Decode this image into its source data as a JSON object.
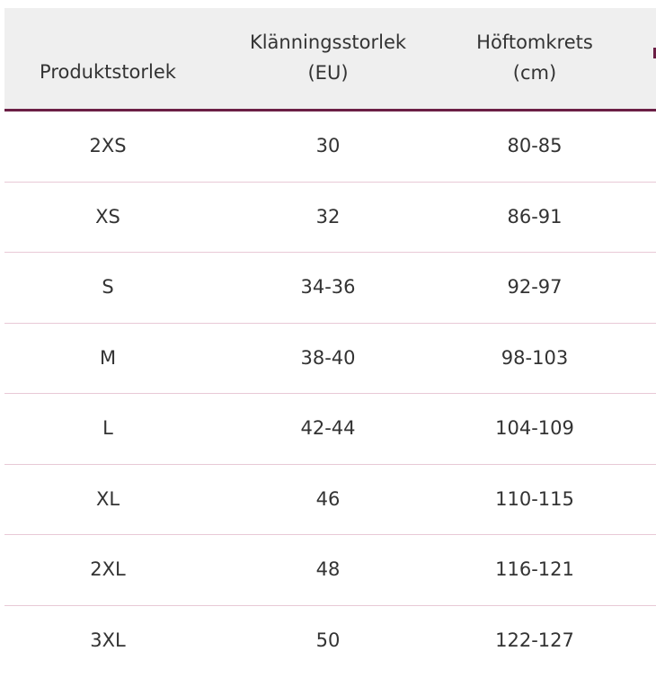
{
  "table": {
    "headers": [
      {
        "line1": "Produktstorlek",
        "line2": ""
      },
      {
        "line1": "Klänningsstorlek",
        "line2": "(EU)"
      },
      {
        "line1": "Höftomkrets",
        "line2": "(cm)"
      }
    ],
    "rows": [
      [
        "2XS",
        "30",
        "80-85"
      ],
      [
        "XS",
        "32",
        "86-91"
      ],
      [
        "S",
        "34-36",
        "92-97"
      ],
      [
        "M",
        "38-40",
        "98-103"
      ],
      [
        "L",
        "42-44",
        "104-109"
      ],
      [
        "XL",
        "46",
        "110-115"
      ],
      [
        "2XL",
        "48",
        "116-121"
      ],
      [
        "3XL",
        "50",
        "122-127"
      ]
    ]
  },
  "colors": {
    "header_bg": "#efefef",
    "header_border": "#6b1f45",
    "row_divider": "#e8c9d6",
    "text": "#333333"
  }
}
